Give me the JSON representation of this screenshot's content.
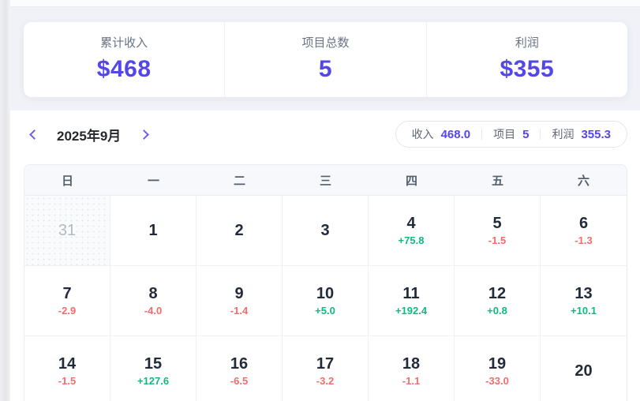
{
  "theme": {
    "accent": "#5347e8",
    "green": "#10b981",
    "red": "#f56c6c"
  },
  "stats": [
    {
      "label": "累计收入",
      "value": "$468"
    },
    {
      "label": "项目总数",
      "value": "5"
    },
    {
      "label": "利润",
      "value": "$355"
    }
  ],
  "calendar": {
    "title": "2025年9月",
    "prev_icon": "chevron-left",
    "next_icon": "chevron-right",
    "summary": [
      {
        "label": "收入",
        "value": "468.0"
      },
      {
        "label": "项目",
        "value": "5"
      },
      {
        "label": "利润",
        "value": "355.3"
      }
    ],
    "weekdays": [
      "日",
      "一",
      "二",
      "三",
      "四",
      "五",
      "六"
    ],
    "weeks": [
      [
        {
          "day": "31",
          "outside": true
        },
        {
          "day": "1"
        },
        {
          "day": "2"
        },
        {
          "day": "3"
        },
        {
          "day": "4",
          "value": "+75.8",
          "trend": "up"
        },
        {
          "day": "5",
          "value": "-1.5",
          "trend": "down"
        },
        {
          "day": "6",
          "value": "-1.3",
          "trend": "down"
        }
      ],
      [
        {
          "day": "7",
          "value": "-2.9",
          "trend": "down"
        },
        {
          "day": "8",
          "value": "-4.0",
          "trend": "down"
        },
        {
          "day": "9",
          "value": "-1.4",
          "trend": "down"
        },
        {
          "day": "10",
          "value": "+5.0",
          "trend": "up"
        },
        {
          "day": "11",
          "value": "+192.4",
          "trend": "up"
        },
        {
          "day": "12",
          "value": "+0.8",
          "trend": "up"
        },
        {
          "day": "13",
          "value": "+10.1",
          "trend": "up"
        }
      ],
      [
        {
          "day": "14",
          "value": "-1.5",
          "trend": "down"
        },
        {
          "day": "15",
          "value": "+127.6",
          "trend": "up"
        },
        {
          "day": "16",
          "value": "-6.5",
          "trend": "down"
        },
        {
          "day": "17",
          "value": "-3.2",
          "trend": "down"
        },
        {
          "day": "18",
          "value": "-1.1",
          "trend": "down"
        },
        {
          "day": "19",
          "value": "-33.0",
          "trend": "down"
        },
        {
          "day": "20"
        }
      ]
    ]
  }
}
